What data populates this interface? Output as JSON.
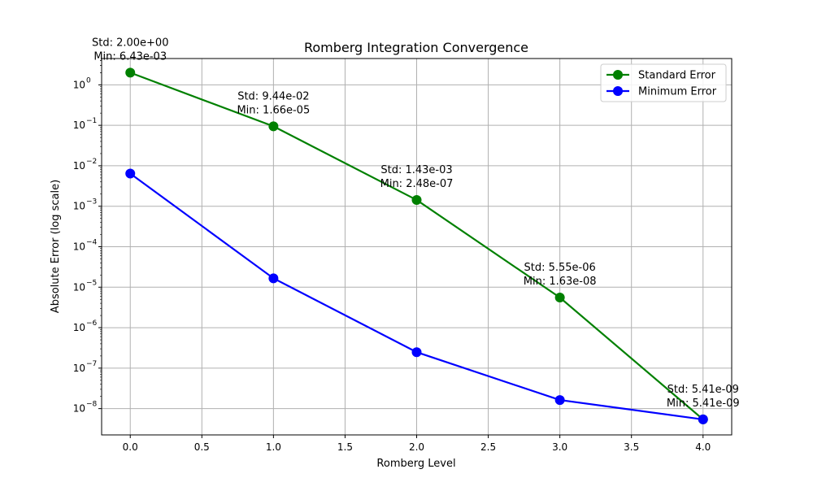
{
  "chart_data": {
    "type": "line",
    "title": "Romberg Integration Convergence",
    "xlabel": "Romberg Level",
    "ylabel": "Absolute Error (log scale)",
    "x": [
      0,
      1,
      2,
      3,
      4
    ],
    "xlim": [
      -0.2,
      4.2
    ],
    "ylim_exp": [
      -8.65,
      0.65
    ],
    "y_scale": "log",
    "grid": true,
    "legend_position": "top-right",
    "x_ticks": [
      {
        "value": 0.0,
        "label": "0.0"
      },
      {
        "value": 0.5,
        "label": "0.5"
      },
      {
        "value": 1.0,
        "label": "1.0"
      },
      {
        "value": 1.5,
        "label": "1.5"
      },
      {
        "value": 2.0,
        "label": "2.0"
      },
      {
        "value": 2.5,
        "label": "2.5"
      },
      {
        "value": 3.0,
        "label": "3.0"
      },
      {
        "value": 3.5,
        "label": "3.5"
      },
      {
        "value": 4.0,
        "label": "4.0"
      }
    ],
    "y_ticks": [
      {
        "exp": 0,
        "label": "10"
      },
      {
        "exp": -1,
        "label": "10"
      },
      {
        "exp": -2,
        "label": "10"
      },
      {
        "exp": -3,
        "label": "10"
      },
      {
        "exp": -4,
        "label": "10"
      },
      {
        "exp": -5,
        "label": "10"
      },
      {
        "exp": -6,
        "label": "10"
      },
      {
        "exp": -7,
        "label": "10"
      },
      {
        "exp": -8,
        "label": "10"
      }
    ],
    "y_tick_exponents": [
      "0",
      "−1",
      "−2",
      "−3",
      "−4",
      "−5",
      "−6",
      "−7",
      "−8"
    ],
    "series": [
      {
        "name": "Standard Error",
        "color": "#008000",
        "values": [
          2.0,
          0.0944,
          0.00143,
          5.55e-06,
          5.41e-09
        ]
      },
      {
        "name": "Minimum Error",
        "color": "#0000ff",
        "values": [
          0.00643,
          1.66e-05,
          2.48e-07,
          1.63e-08,
          5.41e-09
        ]
      }
    ],
    "annotations": [
      {
        "line1": "Std: 2.00e+00",
        "line2": "Min: 6.43e-03"
      },
      {
        "line1": "Std: 9.44e-02",
        "line2": "Min: 1.66e-05"
      },
      {
        "line1": "Std: 1.43e-03",
        "line2": "Min: 2.48e-07"
      },
      {
        "line1": "Std: 5.55e-06",
        "line2": "Min: 1.63e-08"
      },
      {
        "line1": "Std: 5.41e-09",
        "line2": "Min: 5.41e-09"
      }
    ]
  }
}
